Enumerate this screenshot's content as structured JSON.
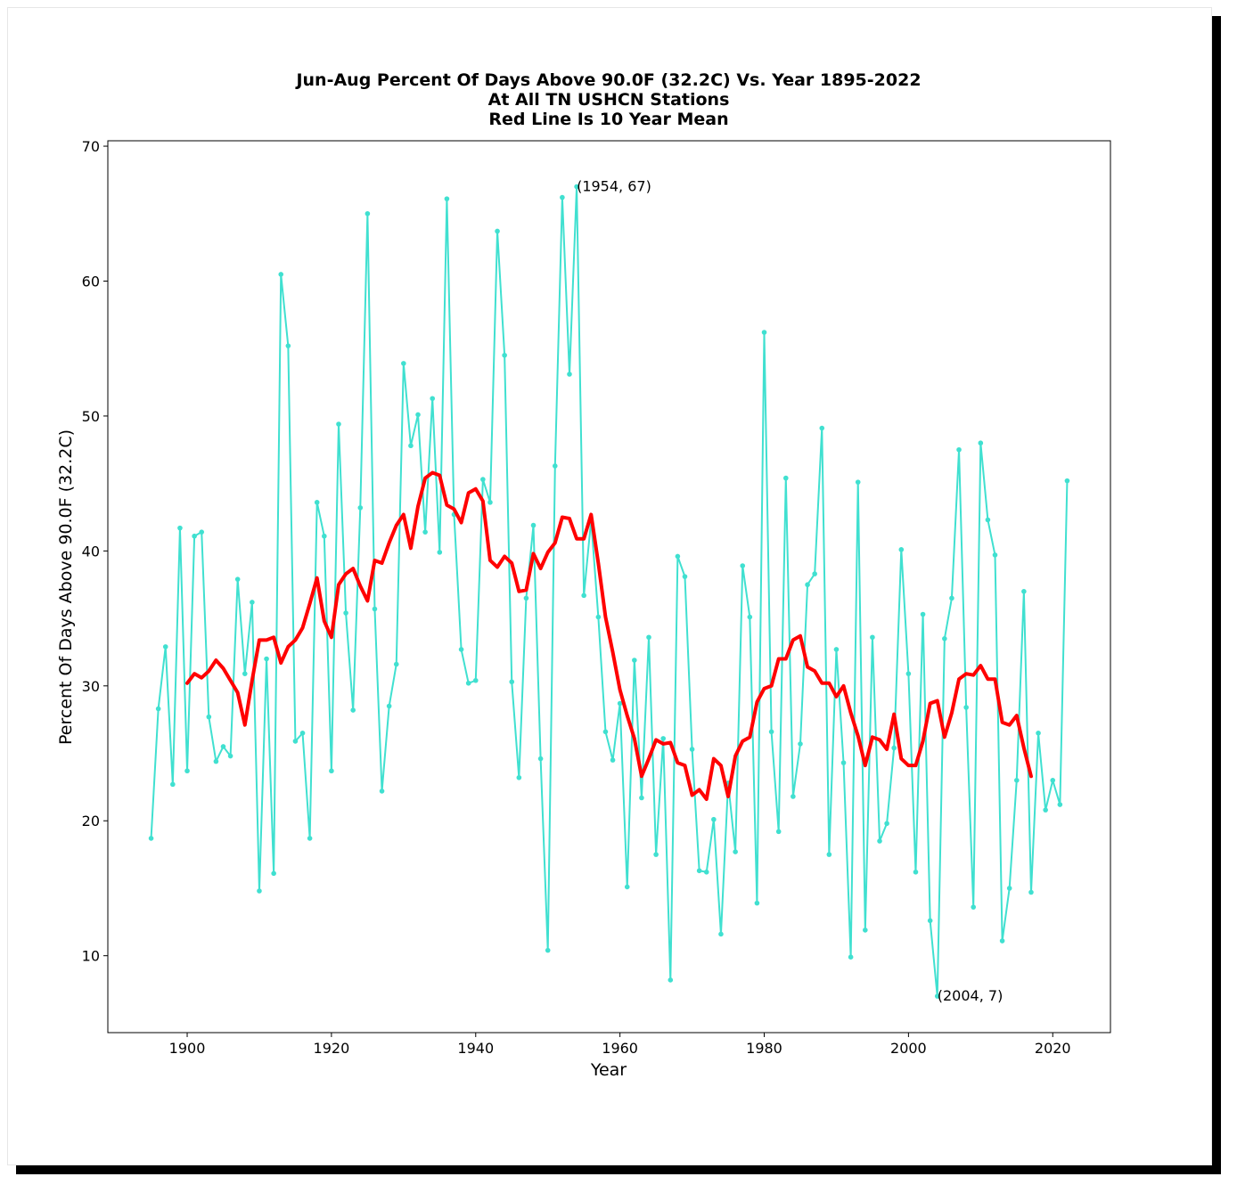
{
  "chart_data": {
    "type": "line",
    "title": [
      "Jun-Aug Percent Of Days Above 90.0F (32.2C) Vs. Year 1895-2022",
      "At All TN USHCN Stations",
      "Red Line Is 10 Year Mean"
    ],
    "xlabel": "Year",
    "ylabel": "Percent Of Days Above 90.0F (32.2C)",
    "xlim": [
      1889,
      2028
    ],
    "ylim": [
      4.3,
      70.4
    ],
    "xticks": [
      1900,
      1920,
      1940,
      1960,
      1980,
      2000,
      2020
    ],
    "yticks": [
      10,
      20,
      30,
      40,
      50,
      60,
      70
    ],
    "grid": false,
    "series": [
      {
        "color": "#40e0d0",
        "marker": "dot",
        "x": [
          1895,
          1896,
          1897,
          1898,
          1899,
          1900,
          1901,
          1902,
          1903,
          1904,
          1905,
          1906,
          1907,
          1908,
          1909,
          1910,
          1911,
          1912,
          1913,
          1914,
          1915,
          1916,
          1917,
          1918,
          1919,
          1920,
          1921,
          1922,
          1923,
          1924,
          1925,
          1926,
          1927,
          1928,
          1929,
          1930,
          1931,
          1932,
          1933,
          1934,
          1935,
          1936,
          1937,
          1938,
          1939,
          1940,
          1941,
          1942,
          1943,
          1944,
          1945,
          1946,
          1947,
          1948,
          1949,
          1950,
          1951,
          1952,
          1953,
          1954,
          1955,
          1956,
          1957,
          1958,
          1959,
          1960,
          1961,
          1962,
          1963,
          1964,
          1965,
          1966,
          1967,
          1968,
          1969,
          1970,
          1971,
          1972,
          1973,
          1974,
          1975,
          1976,
          1977,
          1978,
          1979,
          1980,
          1981,
          1982,
          1983,
          1984,
          1985,
          1986,
          1987,
          1988,
          1989,
          1990,
          1991,
          1992,
          1993,
          1994,
          1995,
          1996,
          1997,
          1998,
          1999,
          2000,
          2001,
          2002,
          2003,
          2004,
          2005,
          2006,
          2007,
          2008,
          2009,
          2010,
          2011,
          2012,
          2013,
          2014,
          2015,
          2016,
          2017,
          2018,
          2019,
          2020,
          2021,
          2022
        ],
        "y": [
          18.7,
          28.3,
          32.9,
          22.7,
          41.7,
          23.7,
          41.1,
          41.4,
          27.7,
          24.4,
          25.5,
          24.8,
          37.9,
          30.9,
          36.2,
          14.8,
          32.0,
          16.1,
          60.5,
          55.2,
          25.9,
          26.5,
          18.7,
          43.6,
          41.1,
          23.7,
          49.4,
          35.4,
          28.2,
          43.2,
          65.0,
          35.7,
          22.2,
          28.5,
          31.6,
          53.9,
          47.8,
          50.1,
          41.4,
          51.3,
          39.9,
          66.1,
          42.7,
          32.7,
          30.2,
          30.4,
          45.3,
          43.6,
          63.7,
          54.5,
          30.3,
          23.2,
          36.5,
          41.9,
          24.6,
          10.4,
          46.3,
          66.2,
          53.1,
          67.0,
          36.7,
          42.3,
          35.1,
          26.6,
          24.5,
          28.7,
          15.1,
          31.9,
          21.7,
          33.6,
          17.5,
          26.1,
          8.2,
          39.6,
          38.1,
          25.3,
          16.3,
          16.2,
          20.1,
          11.6,
          22.8,
          17.7,
          38.9,
          35.1,
          13.9,
          56.2,
          26.6,
          19.2,
          45.4,
          21.8,
          25.7,
          37.5,
          38.3,
          49.1,
          17.5,
          32.7,
          24.3,
          9.9,
          45.1,
          11.9,
          33.6,
          18.5,
          19.8,
          25.4,
          40.1,
          30.9,
          16.2,
          35.3,
          12.6,
          7.0,
          33.5,
          36.5,
          47.5,
          28.4,
          13.6,
          48.0,
          42.3,
          39.7,
          11.1,
          15.0,
          23.0,
          37.0,
          14.7,
          26.5,
          20.8,
          23.0,
          21.2,
          45.2
        ]
      },
      {
        "color": "#ff0000",
        "x": [
          1900,
          1901,
          1902,
          1903,
          1904,
          1905,
          1906,
          1907,
          1908,
          1909,
          1910,
          1911,
          1912,
          1913,
          1914,
          1915,
          1916,
          1917,
          1918,
          1919,
          1920,
          1921,
          1922,
          1923,
          1924,
          1925,
          1926,
          1927,
          1928,
          1929,
          1930,
          1931,
          1932,
          1933,
          1934,
          1935,
          1936,
          1937,
          1938,
          1939,
          1940,
          1941,
          1942,
          1943,
          1944,
          1945,
          1946,
          1947,
          1948,
          1949,
          1950,
          1951,
          1952,
          1953,
          1954,
          1955,
          1956,
          1957,
          1958,
          1959,
          1960,
          1961,
          1962,
          1963,
          1964,
          1965,
          1966,
          1967,
          1968,
          1969,
          1970,
          1971,
          1972,
          1973,
          1974,
          1975,
          1976,
          1977,
          1978,
          1979,
          1980,
          1981,
          1982,
          1983,
          1984,
          1985,
          1986,
          1987,
          1988,
          1989,
          1990,
          1991,
          1992,
          1993,
          1994,
          1995,
          1996,
          1997,
          1998,
          1999,
          2000,
          2001,
          2002,
          2003,
          2004,
          2005,
          2006,
          2007,
          2008,
          2009,
          2010,
          2011,
          2012,
          2013,
          2014,
          2015,
          2016,
          2017
        ],
        "y": [
          30.2,
          30.9,
          30.6,
          31.1,
          31.9,
          31.3,
          30.4,
          29.5,
          27.1,
          30.4,
          33.4,
          33.4,
          33.6,
          31.7,
          32.9,
          33.4,
          34.3,
          36.1,
          38.0,
          34.8,
          33.6,
          37.5,
          38.3,
          38.7,
          37.4,
          36.3,
          39.3,
          39.1,
          40.6,
          41.9,
          42.7,
          40.2,
          43.3,
          45.4,
          45.8,
          45.6,
          43.4,
          43.1,
          42.1,
          44.3,
          44.6,
          43.7,
          39.3,
          38.8,
          39.6,
          39.1,
          37.0,
          37.1,
          39.8,
          38.7,
          39.9,
          40.6,
          42.5,
          42.4,
          40.9,
          40.9,
          42.7,
          39.1,
          35.1,
          32.5,
          29.7,
          27.8,
          26.1,
          23.3,
          24.6,
          26.0,
          25.7,
          25.8,
          24.3,
          24.1,
          21.9,
          22.3,
          21.6,
          24.6,
          24.1,
          21.8,
          24.8,
          25.9,
          26.2,
          28.8,
          29.8,
          30.0,
          32.0,
          32.0,
          33.4,
          33.7,
          31.4,
          31.1,
          30.2,
          30.2,
          29.2,
          30.0,
          28.0,
          26.3,
          24.1,
          26.2,
          26.0,
          25.3,
          27.9,
          24.6,
          24.1,
          24.1,
          25.9,
          28.7,
          28.9,
          26.2,
          28.0,
          30.5,
          30.9,
          30.8,
          31.5,
          30.5,
          30.5,
          27.3,
          27.1,
          27.8,
          25.4,
          23.3
        ]
      }
    ],
    "annotations": [
      {
        "x": 1954,
        "y": 67,
        "text": "(1954, 67)"
      },
      {
        "x": 2004,
        "y": 7,
        "text": "(2004, 7)"
      }
    ]
  }
}
